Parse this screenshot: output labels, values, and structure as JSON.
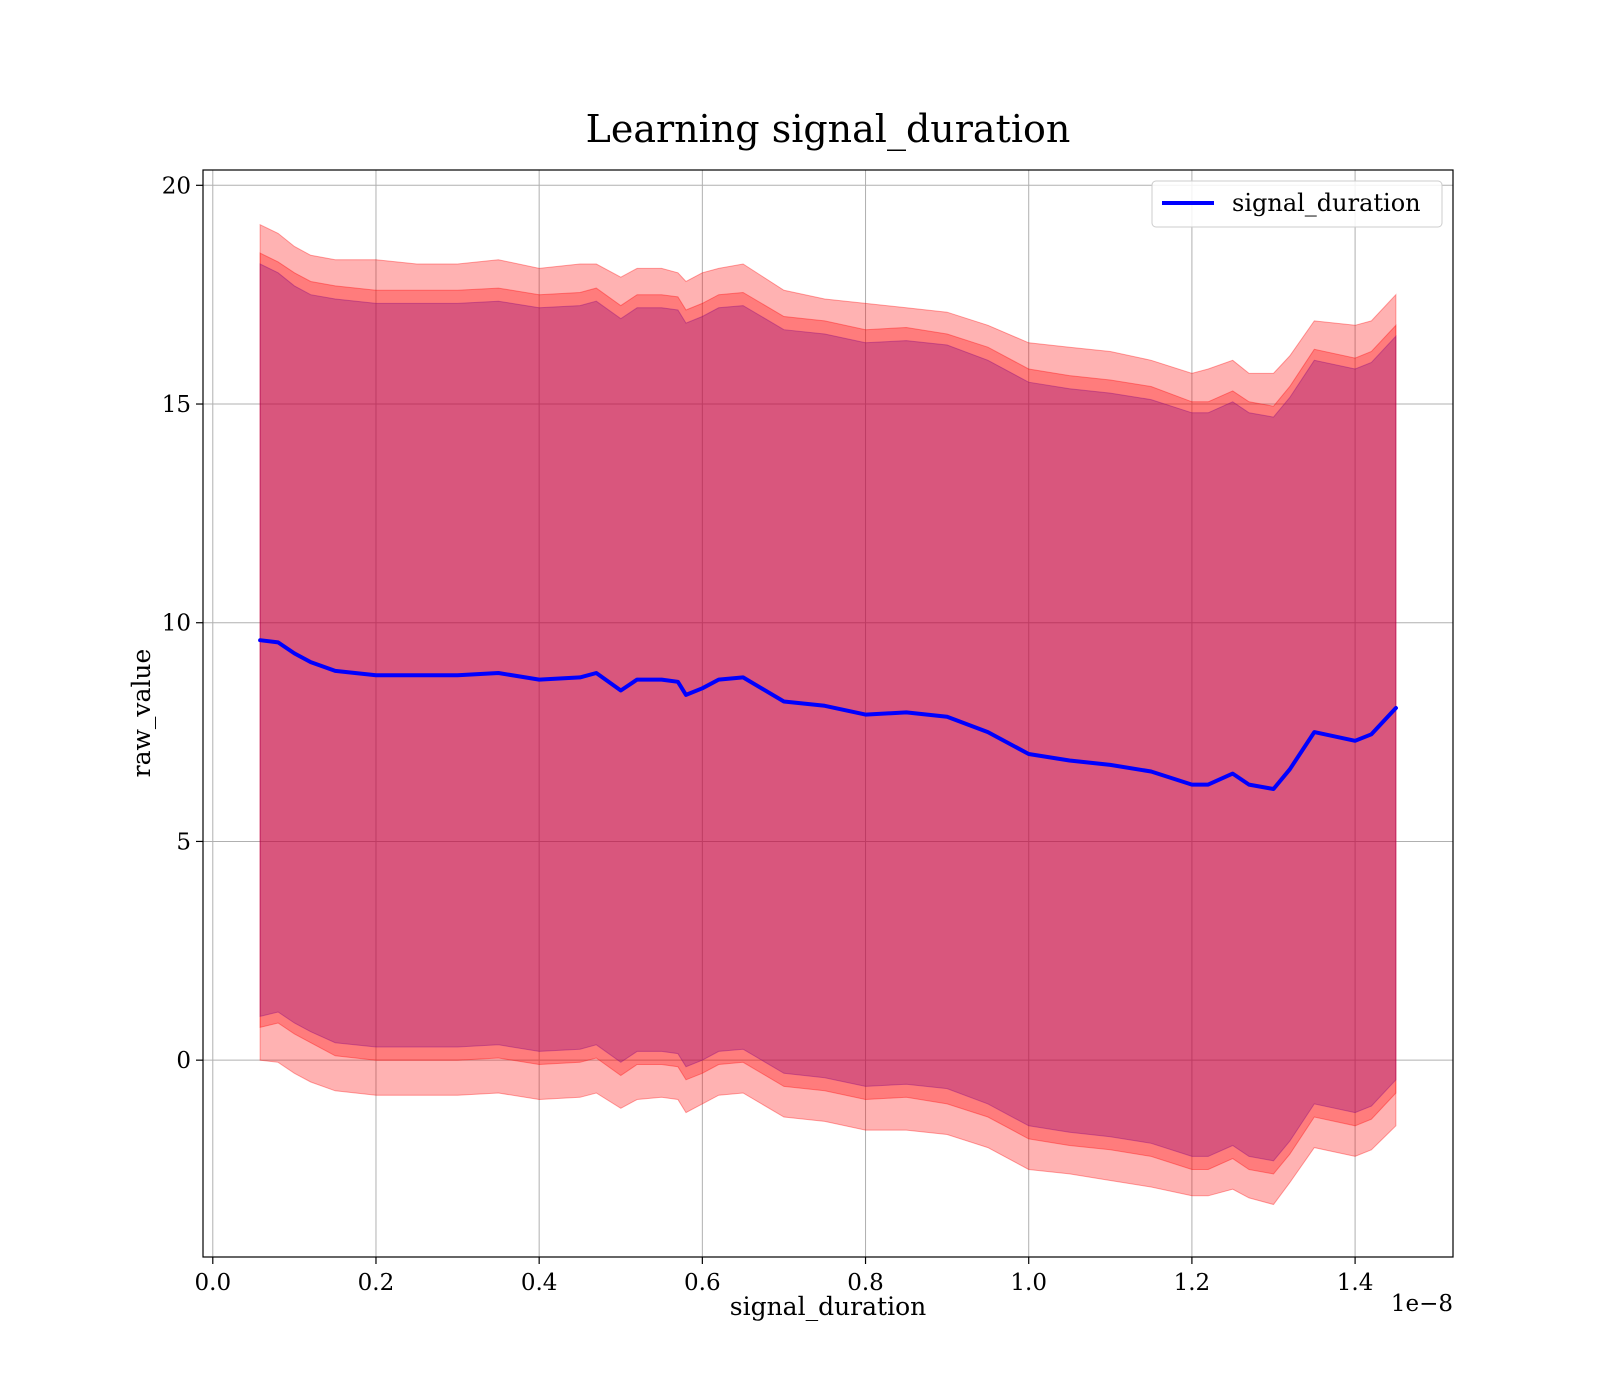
{
  "chart_data": {
    "type": "line",
    "title": "Learning signal_duration",
    "xlabel": "signal_duration",
    "ylabel": "raw_value",
    "x_offset_label": "1e−8",
    "xlim": [
      -0.012,
      1.52
    ],
    "ylim": [
      -4.5,
      20.35
    ],
    "xticks": [
      0.0,
      0.2,
      0.4,
      0.6,
      0.8,
      1.0,
      1.2,
      1.4
    ],
    "xtick_labels": [
      "0.0",
      "0.2",
      "0.4",
      "0.6",
      "0.8",
      "1.0",
      "1.2",
      "1.4"
    ],
    "yticks": [
      0,
      5,
      10,
      15,
      20
    ],
    "ytick_labels": [
      "0",
      "5",
      "10",
      "15",
      "20"
    ],
    "grid": true,
    "legend_position": "top-right",
    "x": [
      0.058,
      0.08,
      0.1,
      0.12,
      0.15,
      0.2,
      0.25,
      0.3,
      0.35,
      0.4,
      0.45,
      0.47,
      0.5,
      0.52,
      0.55,
      0.57,
      0.58,
      0.6,
      0.62,
      0.65,
      0.7,
      0.75,
      0.8,
      0.85,
      0.9,
      0.95,
      1.0,
      1.05,
      1.1,
      1.15,
      1.2,
      1.22,
      1.25,
      1.27,
      1.3,
      1.32,
      1.35,
      1.4,
      1.42,
      1.45
    ],
    "series": [
      {
        "name": "signal_duration",
        "color": "#0000ff",
        "values": [
          9.6,
          9.55,
          9.3,
          9.1,
          8.9,
          8.8,
          8.8,
          8.8,
          8.85,
          8.7,
          8.75,
          8.85,
          8.45,
          8.7,
          8.7,
          8.65,
          8.35,
          8.5,
          8.7,
          8.75,
          8.2,
          8.1,
          7.9,
          7.95,
          7.85,
          7.5,
          7.0,
          6.85,
          6.75,
          6.6,
          6.3,
          6.3,
          6.55,
          6.3,
          6.2,
          6.65,
          7.5,
          7.3,
          7.45,
          8.05
        ]
      }
    ],
    "bands": [
      {
        "level": "outer",
        "color": "#ff0000",
        "opacity": 0.3,
        "upper": [
          19.1,
          18.9,
          18.6,
          18.4,
          18.3,
          18.3,
          18.2,
          18.2,
          18.3,
          18.1,
          18.2,
          18.2,
          17.9,
          18.1,
          18.1,
          18.0,
          17.8,
          18.0,
          18.1,
          18.2,
          17.6,
          17.4,
          17.3,
          17.2,
          17.1,
          16.8,
          16.4,
          16.3,
          16.2,
          16.0,
          15.7,
          15.8,
          16.0,
          15.7,
          15.7,
          16.1,
          16.9,
          16.8,
          16.9,
          17.5
        ],
        "lower": [
          0.0,
          -0.05,
          -0.3,
          -0.5,
          -0.7,
          -0.8,
          -0.8,
          -0.8,
          -0.75,
          -0.9,
          -0.85,
          -0.75,
          -1.1,
          -0.9,
          -0.85,
          -0.9,
          -1.2,
          -1.0,
          -0.8,
          -0.75,
          -1.3,
          -1.4,
          -1.6,
          -1.6,
          -1.7,
          -2.0,
          -2.5,
          -2.6,
          -2.75,
          -2.9,
          -3.1,
          -3.1,
          -2.95,
          -3.15,
          -3.3,
          -2.8,
          -2.0,
          -2.2,
          -2.05,
          -1.5
        ]
      },
      {
        "level": "middle",
        "color": "#ff0000",
        "opacity": 0.3,
        "upper": [
          18.45,
          18.25,
          18.0,
          17.8,
          17.7,
          17.6,
          17.6,
          17.6,
          17.65,
          17.5,
          17.55,
          17.65,
          17.25,
          17.5,
          17.5,
          17.45,
          17.15,
          17.3,
          17.5,
          17.55,
          17.0,
          16.9,
          16.7,
          16.75,
          16.6,
          16.3,
          15.8,
          15.65,
          15.55,
          15.4,
          15.05,
          15.05,
          15.3,
          15.05,
          14.95,
          15.4,
          16.25,
          16.05,
          16.2,
          16.8
        ],
        "lower": [
          0.75,
          0.85,
          0.6,
          0.4,
          0.1,
          0.0,
          0.0,
          0.0,
          0.05,
          -0.1,
          -0.05,
          0.05,
          -0.35,
          -0.1,
          -0.1,
          -0.15,
          -0.45,
          -0.3,
          -0.1,
          -0.05,
          -0.6,
          -0.7,
          -0.9,
          -0.85,
          -1.0,
          -1.3,
          -1.8,
          -1.95,
          -2.05,
          -2.2,
          -2.5,
          -2.5,
          -2.25,
          -2.5,
          -2.6,
          -2.15,
          -1.3,
          -1.5,
          -1.35,
          -0.75
        ]
      },
      {
        "level": "inner",
        "color": "#800080",
        "opacity": 0.3,
        "upper": [
          18.2,
          18.0,
          17.7,
          17.5,
          17.4,
          17.3,
          17.3,
          17.3,
          17.35,
          17.2,
          17.25,
          17.35,
          16.95,
          17.2,
          17.2,
          17.15,
          16.85,
          17.0,
          17.2,
          17.25,
          16.7,
          16.6,
          16.4,
          16.45,
          16.35,
          16.0,
          15.5,
          15.35,
          15.25,
          15.1,
          14.8,
          14.8,
          15.05,
          14.8,
          14.7,
          15.15,
          16.0,
          15.8,
          15.95,
          16.55
        ],
        "lower": [
          1.0,
          1.1,
          0.85,
          0.65,
          0.4,
          0.3,
          0.3,
          0.3,
          0.35,
          0.2,
          0.25,
          0.35,
          -0.05,
          0.2,
          0.2,
          0.15,
          -0.15,
          0.0,
          0.2,
          0.25,
          -0.3,
          -0.4,
          -0.6,
          -0.55,
          -0.65,
          -1.0,
          -1.5,
          -1.65,
          -1.75,
          -1.9,
          -2.2,
          -2.2,
          -1.95,
          -2.2,
          -2.3,
          -1.85,
          -1.0,
          -1.2,
          -1.05,
          -0.45
        ]
      }
    ]
  }
}
